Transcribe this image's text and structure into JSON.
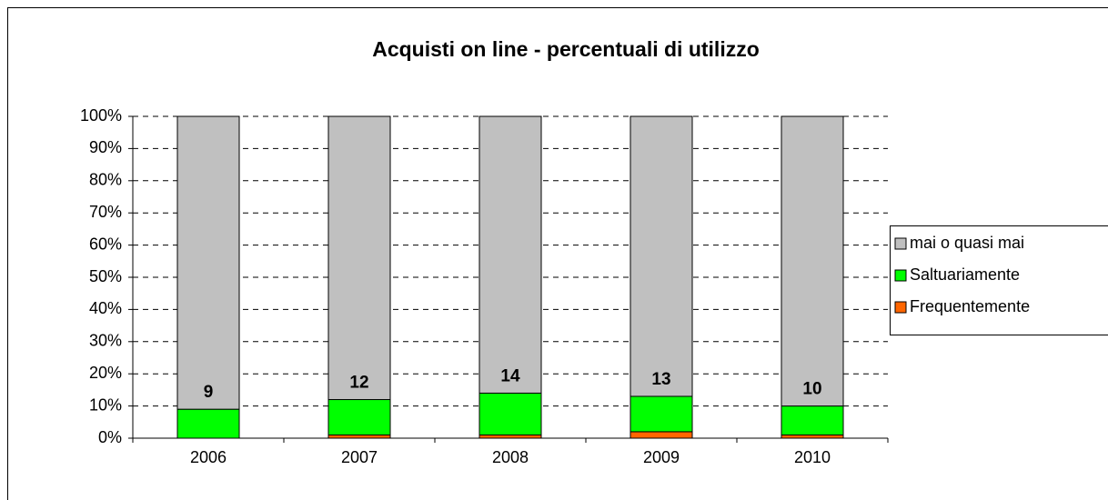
{
  "chart_data": {
    "type": "stacked_bar_percent",
    "title": "Acquisti on line - percentuali di utilizzo",
    "categories": [
      "2006",
      "2007",
      "2008",
      "2009",
      "2010"
    ],
    "series": [
      {
        "name": "Frequentemente",
        "color": "#ff6600",
        "values": [
          0,
          1,
          1,
          2,
          1
        ]
      },
      {
        "name": "Saltuariamente",
        "color": "#00ff00",
        "values": [
          9,
          11,
          13,
          11,
          9
        ]
      },
      {
        "name": "mai o quasi mai",
        "color": "#c0c0c0",
        "values": [
          91,
          88,
          86,
          87,
          90
        ]
      }
    ],
    "totals": [
      9,
      12,
      14,
      13,
      10
    ],
    "ylim": [
      0,
      100
    ],
    "yticks": [
      {
        "value": 0,
        "label": "0%"
      },
      {
        "value": 10,
        "label": "10%"
      },
      {
        "value": 20,
        "label": "20%"
      },
      {
        "value": 30,
        "label": "30%"
      },
      {
        "value": 40,
        "label": "40%"
      },
      {
        "value": 50,
        "label": "50%"
      },
      {
        "value": 60,
        "label": "60%"
      },
      {
        "value": 70,
        "label": "70%"
      },
      {
        "value": 80,
        "label": "80%"
      },
      {
        "value": 90,
        "label": "90%"
      },
      {
        "value": 100,
        "label": "100%"
      }
    ],
    "grid": true,
    "legend": "right"
  }
}
